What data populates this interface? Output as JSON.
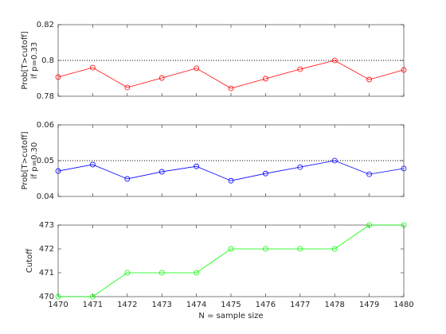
{
  "chart_data": [
    {
      "type": "line",
      "ylabel": [
        "Prob[T>cutoff]",
        "if p=0.33"
      ],
      "x": [
        1470,
        1471,
        1472,
        1473,
        1474,
        1475,
        1476,
        1477,
        1478,
        1479,
        1480
      ],
      "xlim": [
        1470,
        1480
      ],
      "series": [
        {
          "color": "#ff0000",
          "values": [
            0.7907,
            0.796,
            0.7849,
            0.7902,
            0.7956,
            0.7844,
            0.7898,
            0.7951,
            0.8,
            0.7893,
            0.7947
          ]
        }
      ],
      "ylim": [
        0.78,
        0.82
      ],
      "yticks": [
        0.78,
        0.8,
        0.82
      ],
      "reference_line": 0.8
    },
    {
      "type": "line",
      "ylabel": [
        "Prob[T>cutoff]",
        "if p=0.30"
      ],
      "x": [
        1470,
        1471,
        1472,
        1473,
        1474,
        1475,
        1476,
        1477,
        1478,
        1479,
        1480
      ],
      "xlim": [
        1470,
        1480
      ],
      "series": [
        {
          "color": "#0000ff",
          "values": [
            0.0471,
            0.0489,
            0.0449,
            0.0469,
            0.0484,
            0.0444,
            0.0464,
            0.0482,
            0.05,
            0.0462,
            0.0478
          ]
        }
      ],
      "ylim": [
        0.04,
        0.06
      ],
      "yticks": [
        0.04,
        0.05,
        0.06
      ],
      "reference_line": 0.05
    },
    {
      "type": "line",
      "ylabel": [
        "Cutoff"
      ],
      "xlabel": "N = sample size",
      "x": [
        1470,
        1471,
        1472,
        1473,
        1474,
        1475,
        1476,
        1477,
        1478,
        1479,
        1480
      ],
      "xlim": [
        1470,
        1480
      ],
      "xticks": [
        1470,
        1471,
        1472,
        1473,
        1474,
        1475,
        1476,
        1477,
        1478,
        1479,
        1480
      ],
      "series": [
        {
          "color": "#00ff00",
          "values": [
            470,
            470,
            471,
            471,
            471,
            472,
            472,
            472,
            472,
            473,
            473
          ]
        }
      ],
      "ylim": [
        470,
        473
      ],
      "yticks": [
        470,
        471,
        472,
        473
      ]
    }
  ]
}
